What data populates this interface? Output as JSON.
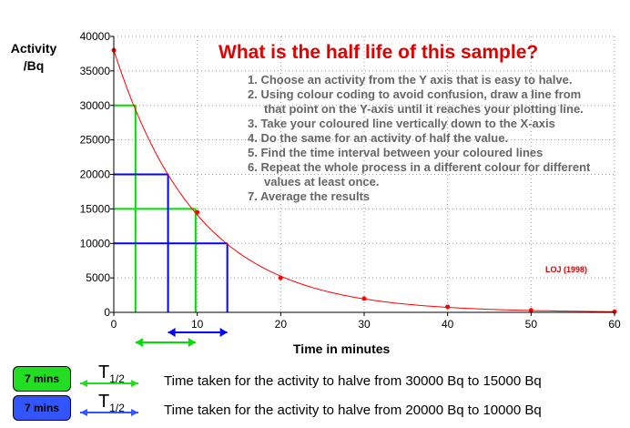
{
  "chart_data": {
    "type": "line",
    "title": "What is the half life of this sample?",
    "xlabel": "Time in minutes",
    "ylabel": [
      "Activity",
      "/Bq"
    ],
    "xlim": [
      0,
      60
    ],
    "ylim": [
      0,
      40000
    ],
    "xticks": [
      0,
      10,
      20,
      30,
      40,
      50,
      60
    ],
    "yticks": [
      0,
      5000,
      10000,
      15000,
      20000,
      25000,
      30000,
      35000,
      40000
    ],
    "grid": true,
    "series": [
      {
        "color": "#ff0000",
        "x": [
          0,
          10,
          20,
          30,
          40,
          50,
          60
        ],
        "y": [
          38000,
          14500,
          5000,
          2000,
          800,
          300,
          100
        ]
      }
    ],
    "half_life_guides": [
      {
        "color": "#00dd00",
        "activity_high": 30000,
        "t_high": 2.6,
        "activity_low": 15000,
        "t_low": 9.8
      },
      {
        "color": "#0000ff",
        "activity_high": 20000,
        "t_high": 6.5,
        "activity_low": 10000,
        "t_low": 13.6
      }
    ]
  },
  "instructions": [
    "1. Choose an activity from the Y axis that is easy to halve.",
    "2. Using colour coding to avoid confusion, draw a line from that point on the Y-axis until it reaches your plotting line.",
    "3. Take your coloured line vertically down to the X-axis",
    "4. Do the same for an activity of half the value.",
    "5. Find the time interval between your coloured lines",
    "6. Repeat the whole process in a different colour for different values at least once.",
    "7. Average the results"
  ],
  "credit": "LOJ (1998)",
  "results": [
    {
      "button_label": "7 mins",
      "color": "#22dd22",
      "symbol": "T",
      "symbol_sub": "1/2",
      "text": "Time taken for the activity to halve from 30000 Bq to 15000 Bq"
    },
    {
      "button_label": "7 mins",
      "color": "#3355ff",
      "symbol": "T",
      "symbol_sub": "1/2",
      "text": "Time taken for the activity to halve from 20000 Bq to 10000 Bq"
    }
  ]
}
